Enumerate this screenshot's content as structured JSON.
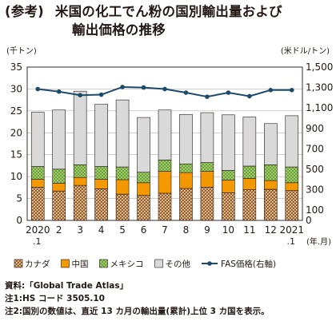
{
  "title": {
    "prefix": "(参考)",
    "line1": "米国の化工でん粉の国別輸出量および",
    "line2": "輸出価格の推移"
  },
  "chart_data": {
    "type": "bar",
    "stacked": true,
    "y_left_unit": "(千トン)",
    "y_right_unit": "(米ドル/トン)",
    "x_unit": "(年.月)",
    "categories": [
      "2020.1",
      "2",
      "3",
      "4",
      "5",
      "6",
      "7",
      "8",
      "9",
      "10",
      "11",
      "12",
      "2021.1"
    ],
    "x_tick_labels": [
      {
        "main": "2020",
        "sub": ".1"
      },
      {
        "main": "2",
        "sub": ""
      },
      {
        "main": "3",
        "sub": ""
      },
      {
        "main": "4",
        "sub": ""
      },
      {
        "main": "5",
        "sub": ""
      },
      {
        "main": "6",
        "sub": ""
      },
      {
        "main": "7",
        "sub": ""
      },
      {
        "main": "8",
        "sub": ""
      },
      {
        "main": "9",
        "sub": ""
      },
      {
        "main": "10",
        "sub": ""
      },
      {
        "main": "11",
        "sub": ""
      },
      {
        "main": "12",
        "sub": ""
      },
      {
        "main": "2021",
        "sub": ".1"
      }
    ],
    "ylim_left": [
      0,
      35
    ],
    "yticks_left": [
      0,
      5,
      10,
      15,
      20,
      25,
      30,
      35
    ],
    "ylim_right": [
      0,
      1500
    ],
    "yticks_right": [
      0,
      100,
      300,
      500,
      700,
      900,
      1100,
      1300,
      1500
    ],
    "yticks_right_labels": [
      "0",
      "100",
      "300",
      "500",
      "700",
      "900",
      "1,100",
      "1,300",
      "1,500"
    ],
    "grid": true,
    "legend_position": "bottom",
    "series": [
      {
        "name": "カナダ",
        "key": "canada",
        "color": "#a0602a",
        "values": [
          7.6,
          6.7,
          8.0,
          7.2,
          6.0,
          5.7,
          6.2,
          7.3,
          7.6,
          6.3,
          7.0,
          7.1,
          6.8
        ]
      },
      {
        "name": "中国",
        "key": "china",
        "color": "#f39800",
        "values": [
          1.8,
          1.8,
          1.8,
          2.2,
          3.3,
          2.9,
          5.0,
          3.6,
          3.6,
          2.9,
          2.6,
          2.0,
          1.8
        ]
      },
      {
        "name": "メキシコ",
        "key": "mexico",
        "color": "#a7d46f",
        "values": [
          2.9,
          3.2,
          2.9,
          2.9,
          2.9,
          2.4,
          2.6,
          2.0,
          2.0,
          2.2,
          2.8,
          3.6,
          3.6
        ]
      },
      {
        "name": "その他",
        "key": "others",
        "color": "#d9d9d9",
        "values": [
          12.4,
          13.5,
          16.8,
          14.2,
          15.3,
          12.5,
          11.4,
          11.3,
          11.4,
          12.7,
          11.2,
          9.4,
          11.7
        ]
      }
    ],
    "line_series": {
      "name": "FAS価格(右軸)",
      "color": "#1b4a6b",
      "values": [
        1285,
        1260,
        1225,
        1230,
        1305,
        1300,
        1285,
        1250,
        1210,
        1250,
        1215,
        1275,
        1275
      ]
    }
  },
  "notes": [
    "資料:「Global Trade Atlas」",
    "注1:HS コード 3505.10",
    "注2:国別の数値は、直近 13 カ月の輸出量(累計)上位 3 カ国を表示。"
  ]
}
